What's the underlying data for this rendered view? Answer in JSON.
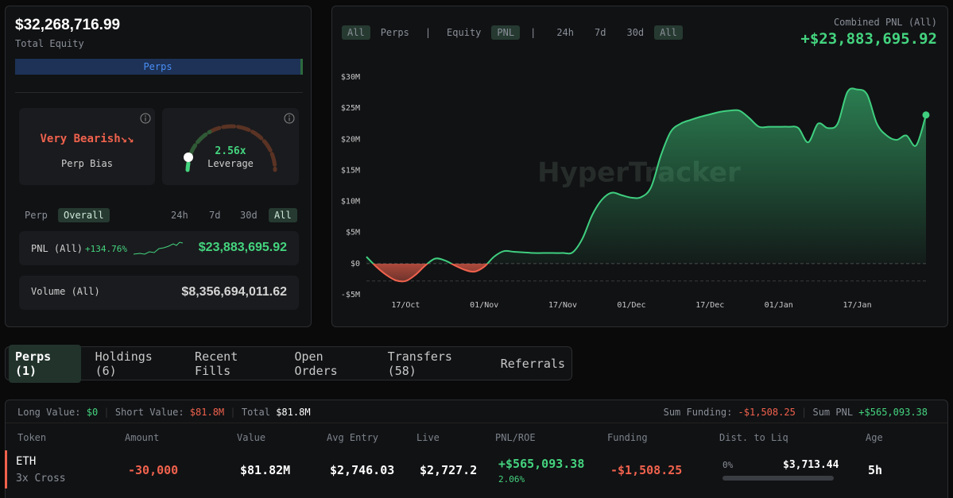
{
  "header": {
    "total_equity": "$32,268,716.99",
    "total_equity_label": "Total Equity",
    "allocation_bar": "Perps"
  },
  "bias": {
    "label": "Very Bearish↘↘",
    "caption": "Perp Bias"
  },
  "leverage": {
    "value": "2.56x",
    "caption": "Leverage"
  },
  "filters": {
    "market": [
      "Perp",
      "Overall"
    ],
    "range": [
      "24h",
      "7d",
      "30d",
      "All"
    ]
  },
  "pnl_row": {
    "label": "PNL (All)",
    "change": "+134.76%",
    "value": "$23,883,695.92"
  },
  "volume_row": {
    "label": "Volume (All)",
    "value": "$8,356,694,011.62"
  },
  "chart_controls": [
    "All",
    "Perps",
    "|",
    "Equity",
    "PNL",
    "|",
    "24h",
    "7d",
    "30d",
    "All"
  ],
  "chart_data": {
    "type": "area",
    "title": "Combined PNL (All)",
    "subtitle": "+$23,883,695.92",
    "watermark": "HyperTracker",
    "categories": [
      null,
      null,
      null,
      null,
      "17/Oct",
      null,
      null,
      null,
      null,
      null,
      null,
      null,
      "01/Nov",
      null,
      null,
      null,
      null,
      null,
      null,
      null,
      "17/Nov",
      null,
      null,
      null,
      null,
      null,
      null,
      "01/Dec",
      null,
      null,
      null,
      null,
      null,
      null,
      null,
      "17/Dec",
      null,
      null,
      null,
      null,
      null,
      null,
      "01/Jan",
      null,
      null,
      null,
      null,
      null,
      null,
      null,
      "17/Jan",
      null,
      null,
      null,
      null,
      null,
      null,
      null
    ],
    "values": [
      1.1,
      -0.5,
      -1.8,
      -2.7,
      -2.8,
      -1.8,
      -0.3,
      0.8,
      0.5,
      -0.3,
      -1.0,
      -1.3,
      -0.5,
      1.1,
      2,
      1.9,
      1.8,
      1.7,
      1.7,
      1.7,
      1.7,
      1.8,
      4,
      7.8,
      10.3,
      11.4,
      11,
      10.6,
      10.7,
      12.3,
      17.4,
      21.2,
      22.5,
      23.1,
      23.6,
      24,
      24.4,
      24.6,
      24.6,
      23.4,
      22,
      22,
      22,
      22,
      21.8,
      19.5,
      22.5,
      21.8,
      22.5,
      27.6,
      28,
      27.2,
      22.5,
      20.6,
      19.9,
      20.6,
      19,
      23.9
    ],
    "color": "#3fcf7f",
    "negative_color": "#f0624d",
    "ylim": [
      -5,
      30
    ],
    "yticks": [
      {
        "value": 30,
        "label": "$30M"
      },
      {
        "value": 25,
        "label": "$25M"
      },
      {
        "value": 20,
        "label": "$20M"
      },
      {
        "value": 15,
        "label": "$15M"
      },
      {
        "value": 10,
        "label": "$10M"
      },
      {
        "value": 5,
        "label": "$5M"
      },
      {
        "value": 0,
        "label": "$0"
      },
      {
        "value": -5,
        "label": "-$5M"
      }
    ]
  },
  "tabs": [
    "Perps (1)",
    "Holdings (6)",
    "Recent Fills",
    "Open Orders",
    "Transfers (58)",
    "Referrals"
  ],
  "summary": {
    "long_label": "Long Value:",
    "long_value": "$0",
    "short_label": "Short Value:",
    "short_value": "$81.8M",
    "total_label": "Total",
    "total_value": "$81.8M",
    "funding_label": "Sum Funding:",
    "funding_value": "-$1,508.25",
    "pnl_label": "Sum PNL",
    "pnl_value": "+$565,093.38"
  },
  "table": {
    "headers": [
      "Token",
      "Amount",
      "Value",
      "Avg Entry",
      "Live",
      "PNL/ROE",
      "Funding",
      "Dist. to Liq",
      "Age"
    ],
    "rows": [
      {
        "token": "ETH",
        "mode": "3x Cross",
        "amount": "-30,000",
        "value": "$81.82M",
        "avg_entry": "$2,746.03",
        "live": "$2,727.2",
        "pnl": "+$565,093.38",
        "roe": "2.06%",
        "funding": "-$1,508.25",
        "liq_pct": "0%",
        "liq_price": "$3,713.44",
        "age": "5h"
      }
    ]
  }
}
